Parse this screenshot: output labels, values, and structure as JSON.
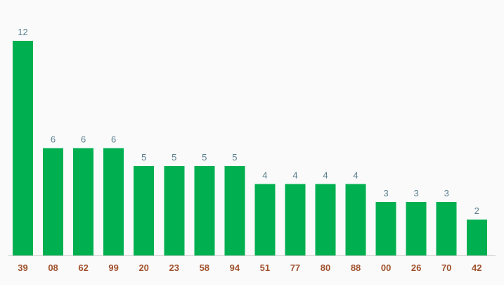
{
  "chart_data": {
    "type": "bar",
    "title": "",
    "xlabel": "",
    "ylabel": "",
    "categories": [
      "39",
      "08",
      "62",
      "99",
      "20",
      "23",
      "58",
      "94",
      "51",
      "77",
      "80",
      "88",
      "00",
      "26",
      "70",
      "42"
    ],
    "values": [
      12,
      6,
      6,
      6,
      5,
      5,
      5,
      5,
      4,
      4,
      4,
      4,
      3,
      3,
      3,
      2
    ],
    "ylim": [
      0,
      12
    ],
    "grid": false,
    "data_labels": true,
    "colors": {
      "bar": "#00b050",
      "value_label": "#5a7f8f",
      "tick_label": "#a0522d",
      "baseline": "#cccccc",
      "background": "#fafafa"
    }
  }
}
